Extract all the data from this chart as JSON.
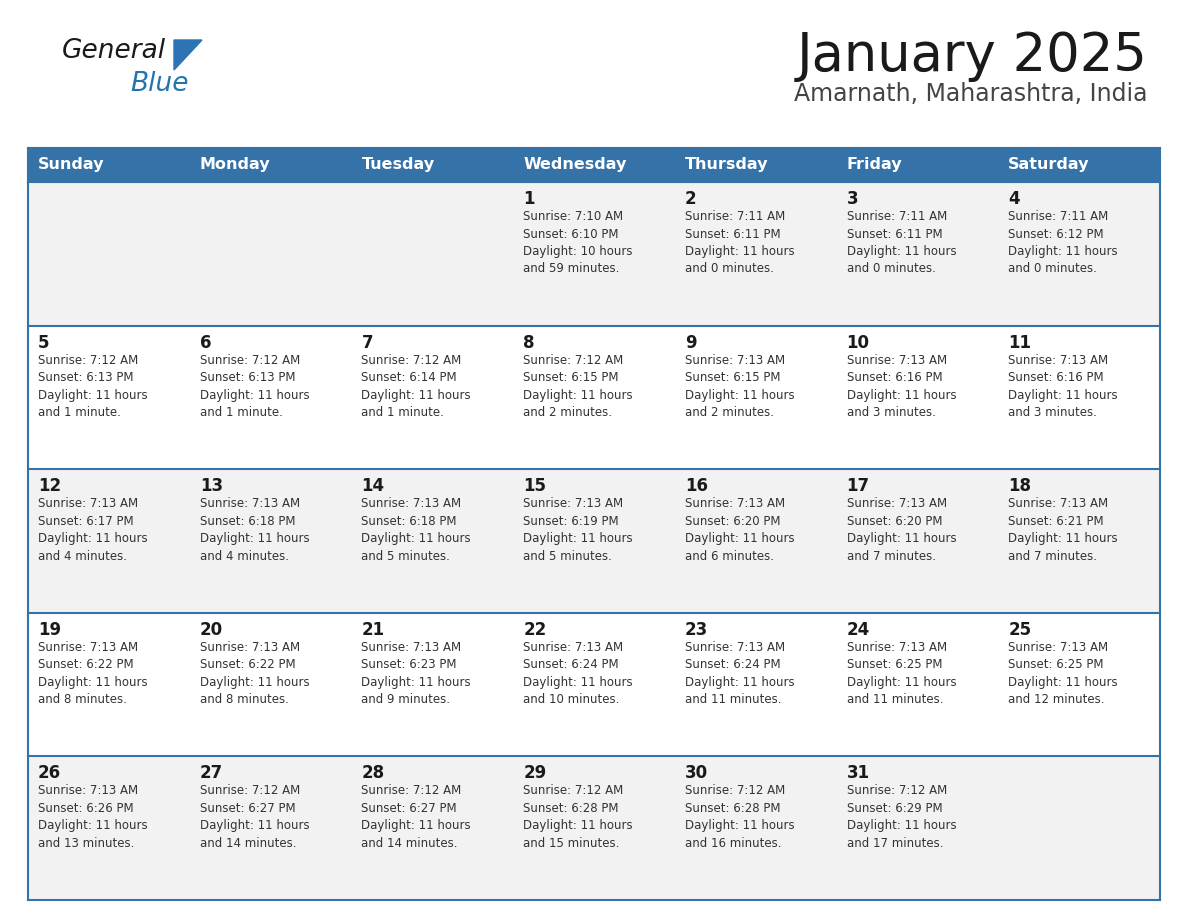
{
  "title": "January 2025",
  "subtitle": "Amarnath, Maharashtra, India",
  "header_color": "#3572A8",
  "header_text_color": "#FFFFFF",
  "row_bg_colors": [
    "#F2F2F2",
    "#FFFFFF"
  ],
  "border_color": "#3572A8",
  "text_color": "#333333",
  "day_names": [
    "Sunday",
    "Monday",
    "Tuesday",
    "Wednesday",
    "Thursday",
    "Friday",
    "Saturday"
  ],
  "calendar": [
    [
      {
        "day": "",
        "info": ""
      },
      {
        "day": "",
        "info": ""
      },
      {
        "day": "",
        "info": ""
      },
      {
        "day": "1",
        "info": "Sunrise: 7:10 AM\nSunset: 6:10 PM\nDaylight: 10 hours\nand 59 minutes."
      },
      {
        "day": "2",
        "info": "Sunrise: 7:11 AM\nSunset: 6:11 PM\nDaylight: 11 hours\nand 0 minutes."
      },
      {
        "day": "3",
        "info": "Sunrise: 7:11 AM\nSunset: 6:11 PM\nDaylight: 11 hours\nand 0 minutes."
      },
      {
        "day": "4",
        "info": "Sunrise: 7:11 AM\nSunset: 6:12 PM\nDaylight: 11 hours\nand 0 minutes."
      }
    ],
    [
      {
        "day": "5",
        "info": "Sunrise: 7:12 AM\nSunset: 6:13 PM\nDaylight: 11 hours\nand 1 minute."
      },
      {
        "day": "6",
        "info": "Sunrise: 7:12 AM\nSunset: 6:13 PM\nDaylight: 11 hours\nand 1 minute."
      },
      {
        "day": "7",
        "info": "Sunrise: 7:12 AM\nSunset: 6:14 PM\nDaylight: 11 hours\nand 1 minute."
      },
      {
        "day": "8",
        "info": "Sunrise: 7:12 AM\nSunset: 6:15 PM\nDaylight: 11 hours\nand 2 minutes."
      },
      {
        "day": "9",
        "info": "Sunrise: 7:13 AM\nSunset: 6:15 PM\nDaylight: 11 hours\nand 2 minutes."
      },
      {
        "day": "10",
        "info": "Sunrise: 7:13 AM\nSunset: 6:16 PM\nDaylight: 11 hours\nand 3 minutes."
      },
      {
        "day": "11",
        "info": "Sunrise: 7:13 AM\nSunset: 6:16 PM\nDaylight: 11 hours\nand 3 minutes."
      }
    ],
    [
      {
        "day": "12",
        "info": "Sunrise: 7:13 AM\nSunset: 6:17 PM\nDaylight: 11 hours\nand 4 minutes."
      },
      {
        "day": "13",
        "info": "Sunrise: 7:13 AM\nSunset: 6:18 PM\nDaylight: 11 hours\nand 4 minutes."
      },
      {
        "day": "14",
        "info": "Sunrise: 7:13 AM\nSunset: 6:18 PM\nDaylight: 11 hours\nand 5 minutes."
      },
      {
        "day": "15",
        "info": "Sunrise: 7:13 AM\nSunset: 6:19 PM\nDaylight: 11 hours\nand 5 minutes."
      },
      {
        "day": "16",
        "info": "Sunrise: 7:13 AM\nSunset: 6:20 PM\nDaylight: 11 hours\nand 6 minutes."
      },
      {
        "day": "17",
        "info": "Sunrise: 7:13 AM\nSunset: 6:20 PM\nDaylight: 11 hours\nand 7 minutes."
      },
      {
        "day": "18",
        "info": "Sunrise: 7:13 AM\nSunset: 6:21 PM\nDaylight: 11 hours\nand 7 minutes."
      }
    ],
    [
      {
        "day": "19",
        "info": "Sunrise: 7:13 AM\nSunset: 6:22 PM\nDaylight: 11 hours\nand 8 minutes."
      },
      {
        "day": "20",
        "info": "Sunrise: 7:13 AM\nSunset: 6:22 PM\nDaylight: 11 hours\nand 8 minutes."
      },
      {
        "day": "21",
        "info": "Sunrise: 7:13 AM\nSunset: 6:23 PM\nDaylight: 11 hours\nand 9 minutes."
      },
      {
        "day": "22",
        "info": "Sunrise: 7:13 AM\nSunset: 6:24 PM\nDaylight: 11 hours\nand 10 minutes."
      },
      {
        "day": "23",
        "info": "Sunrise: 7:13 AM\nSunset: 6:24 PM\nDaylight: 11 hours\nand 11 minutes."
      },
      {
        "day": "24",
        "info": "Sunrise: 7:13 AM\nSunset: 6:25 PM\nDaylight: 11 hours\nand 11 minutes."
      },
      {
        "day": "25",
        "info": "Sunrise: 7:13 AM\nSunset: 6:25 PM\nDaylight: 11 hours\nand 12 minutes."
      }
    ],
    [
      {
        "day": "26",
        "info": "Sunrise: 7:13 AM\nSunset: 6:26 PM\nDaylight: 11 hours\nand 13 minutes."
      },
      {
        "day": "27",
        "info": "Sunrise: 7:12 AM\nSunset: 6:27 PM\nDaylight: 11 hours\nand 14 minutes."
      },
      {
        "day": "28",
        "info": "Sunrise: 7:12 AM\nSunset: 6:27 PM\nDaylight: 11 hours\nand 14 minutes."
      },
      {
        "day": "29",
        "info": "Sunrise: 7:12 AM\nSunset: 6:28 PM\nDaylight: 11 hours\nand 15 minutes."
      },
      {
        "day": "30",
        "info": "Sunrise: 7:12 AM\nSunset: 6:28 PM\nDaylight: 11 hours\nand 16 minutes."
      },
      {
        "day": "31",
        "info": "Sunrise: 7:12 AM\nSunset: 6:29 PM\nDaylight: 11 hours\nand 17 minutes."
      },
      {
        "day": "",
        "info": ""
      }
    ]
  ],
  "logo_text_general": "General",
  "logo_text_blue": "Blue",
  "logo_color_general": "#1a1a1a",
  "logo_color_blue": "#2176AE",
  "logo_triangle_color": "#2E74B5",
  "figwidth": 11.88,
  "figheight": 9.18,
  "dpi": 100
}
